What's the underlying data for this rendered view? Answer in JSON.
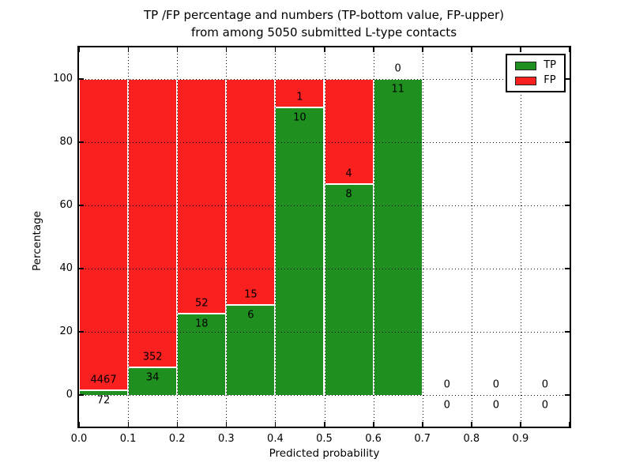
{
  "header": {
    "title_line1": "TP /FP percentage and numbers (TP-bottom value, FP-upper)",
    "title_line2": "from among 5050 submitted L-type contacts"
  },
  "chart_data": {
    "type": "bar",
    "subtype": "stacked-percentage-histogram",
    "title": "TP /FP percentage and numbers (TP-bottom value, FP-upper)\nfrom among 5050 submitted L-type contacts",
    "xlabel": "Predicted probability",
    "ylabel": "Percentage",
    "xlim": [
      0.0,
      1.0
    ],
    "ylim": [
      -10,
      110
    ],
    "x_ticks": [
      "0.0",
      "0.1",
      "0.2",
      "0.3",
      "0.4",
      "0.5",
      "0.6",
      "0.7",
      "0.8",
      "0.9"
    ],
    "y_ticks": [
      "0",
      "20",
      "40",
      "60",
      "80",
      "100"
    ],
    "y_tick_values": [
      0,
      20,
      40,
      60,
      80,
      100
    ],
    "grid": true,
    "total_submitted": 5050,
    "colors": {
      "tp": "#1f8f1f",
      "fp": "#fa2020"
    },
    "legend": {
      "position": "upper right",
      "entries": [
        {
          "label": "TP",
          "color": "#1f8f1f"
        },
        {
          "label": "FP",
          "color": "#fa2020"
        }
      ]
    },
    "bins": [
      {
        "range": [
          0.0,
          0.1
        ],
        "tp": 72,
        "fp": 4467
      },
      {
        "range": [
          0.1,
          0.2
        ],
        "tp": 34,
        "fp": 352
      },
      {
        "range": [
          0.2,
          0.3
        ],
        "tp": 18,
        "fp": 52
      },
      {
        "range": [
          0.3,
          0.4
        ],
        "tp": 6,
        "fp": 15
      },
      {
        "range": [
          0.4,
          0.5
        ],
        "tp": 10,
        "fp": 1
      },
      {
        "range": [
          0.5,
          0.6
        ],
        "tp": 8,
        "fp": 4
      },
      {
        "range": [
          0.6,
          0.7
        ],
        "tp": 11,
        "fp": 0
      },
      {
        "range": [
          0.7,
          0.8
        ],
        "tp": 0,
        "fp": 0
      },
      {
        "range": [
          0.8,
          0.9
        ],
        "tp": 0,
        "fp": 0
      },
      {
        "range": [
          0.9,
          1.0
        ],
        "tp": 0,
        "fp": 0
      }
    ]
  }
}
